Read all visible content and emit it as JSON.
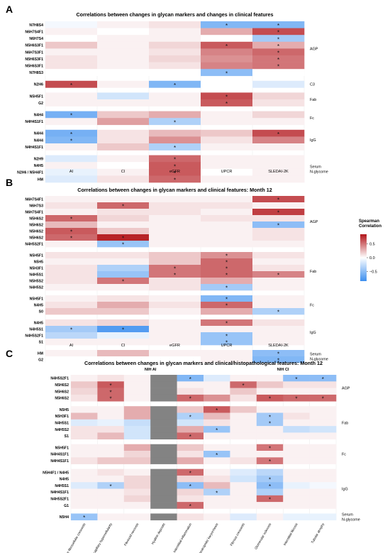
{
  "chart_data": [
    {
      "panel": "A",
      "type": "heatmap",
      "title": "Correlations between changes in glycan markers and changes in clinical features",
      "columns": [
        "AI",
        "CI",
        "eGFR",
        "UPCR",
        "SLEDAI-2K"
      ],
      "column_titles": [],
      "groups": [
        {
          "name": "AGP",
          "rows": [
            "N7H8S4",
            "N6H7S4F1",
            "N6H7S4",
            "N5H6S3F1",
            "N6H7S3F1",
            "N5H6S3F1",
            "N5H6S3F1",
            "N7H8S3"
          ]
        },
        {
          "name": "C3",
          "rows": [
            "N2H6"
          ]
        },
        {
          "name": "Fab",
          "rows": [
            "N5H5F1",
            "G2"
          ]
        },
        {
          "name": "Fc",
          "rows": [
            "N4H4",
            "N4H4S1F1"
          ]
        },
        {
          "name": "IgG",
          "rows": [
            "N4H4",
            "N4H4",
            "N4H4S1F1"
          ]
        },
        {
          "name": "Serum\nN-glycome",
          "rows": [
            "N2H9",
            "N4H5",
            "N2H6 / N5H4F1",
            "HM"
          ]
        }
      ],
      "values": [
        [
          -0.05,
          0.05,
          0.1,
          -0.55,
          -0.55
        ],
        [
          0.05,
          0.0,
          0.05,
          0.3,
          0.65
        ],
        [
          0.0,
          0.05,
          0.05,
          0.0,
          -0.4
        ],
        [
          0.2,
          0.05,
          0.15,
          0.6,
          0.3
        ],
        [
          0.05,
          0.05,
          0.1,
          0.45,
          0.55
        ],
        [
          0.1,
          0.05,
          0.15,
          0.4,
          0.5
        ],
        [
          0.1,
          0.05,
          0.1,
          0.45,
          0.5
        ],
        [
          0.0,
          0.0,
          0.0,
          -0.5,
          0.0
        ],
        [
          0.65,
          0.05,
          -0.55,
          0.0,
          -0.15
        ],
        [
          0.05,
          -0.2,
          0.05,
          0.65,
          0.15
        ],
        [
          0.05,
          0.05,
          0.05,
          0.6,
          0.1
        ],
        [
          -0.6,
          0.2,
          0.3,
          0.05,
          0.15
        ],
        [
          0.05,
          0.35,
          -0.35,
          0.05,
          0.05
        ],
        [
          -0.6,
          0.1,
          0.25,
          0.2,
          0.65
        ],
        [
          -0.55,
          0.1,
          0.4,
          0.1,
          0.45
        ],
        [
          0.05,
          0.2,
          -0.35,
          0.05,
          0.05
        ],
        [
          -0.15,
          0.05,
          0.55,
          0.05,
          0.05
        ],
        [
          0.05,
          0.0,
          0.6,
          0.05,
          0.05
        ],
        [
          -0.1,
          0.05,
          0.6,
          0.0,
          0.05
        ],
        [
          -0.15,
          0.1,
          0.55,
          0.05,
          0.05
        ]
      ],
      "significant": [
        [
          0,
          3
        ],
        [
          0,
          4
        ],
        [
          1,
          4
        ],
        [
          2,
          4
        ],
        [
          3,
          3
        ],
        [
          3,
          4
        ],
        [
          4,
          4
        ],
        [
          5,
          4
        ],
        [
          6,
          4
        ],
        [
          7,
          3
        ],
        [
          8,
          0
        ],
        [
          8,
          2
        ],
        [
          9,
          3
        ],
        [
          10,
          3
        ],
        [
          11,
          0
        ],
        [
          12,
          2
        ],
        [
          13,
          0
        ],
        [
          13,
          4
        ],
        [
          14,
          0
        ],
        [
          15,
          2
        ],
        [
          16,
          2
        ],
        [
          17,
          2
        ],
        [
          18,
          2
        ],
        [
          19,
          2
        ]
      ]
    },
    {
      "panel": "B",
      "type": "heatmap",
      "title": "Correlations between changes in glycan markers and clinical features: Month 12",
      "columns": [
        "AI",
        "CI",
        "eGFR",
        "UPCR",
        "SLEDAI-2K"
      ],
      "column_titles": [],
      "groups": [
        {
          "name": "AGP",
          "rows": [
            "N6H7S4F1",
            "N6H7S3",
            "N6H7S4F1",
            "N5H6S2",
            "N5H6S2",
            "N5H6S2",
            "N5H6S2",
            "N4H5S2F1"
          ]
        },
        {
          "name": "Fab",
          "rows": [
            "N5H5F1",
            "N5H5",
            "N5H3F1",
            "N4H5S1",
            "N5H5S2",
            "N4H5S2"
          ]
        },
        {
          "name": "Fc",
          "rows": [
            "N5H5F1",
            "N4H5",
            "S0"
          ]
        },
        {
          "name": "IgG",
          "rows": [
            "N4H5",
            "N4H5S1",
            "N4H5S2F1",
            "S1"
          ]
        },
        {
          "name": "Serum\nN-glycome",
          "rows": [
            "HM",
            "G2"
          ]
        }
      ],
      "values": [
        [
          0.05,
          0.05,
          0.05,
          0.05,
          0.65
        ],
        [
          0.1,
          0.55,
          0.1,
          0.1,
          0.05
        ],
        [
          0.05,
          0.1,
          0.1,
          0.05,
          0.7
        ],
        [
          0.55,
          0.15,
          0.05,
          0.1,
          0.1
        ],
        [
          0.25,
          0.05,
          0.05,
          0.05,
          -0.5
        ],
        [
          0.6,
          0.2,
          0.05,
          0.05,
          0.1
        ],
        [
          0.55,
          0.8,
          0.05,
          0.05,
          0.1
        ],
        [
          0.05,
          -0.45,
          0.05,
          0.05,
          0.05
        ],
        [
          0.1,
          0.1,
          0.2,
          0.4,
          0.1
        ],
        [
          0.05,
          0.05,
          0.2,
          0.55,
          0.05
        ],
        [
          0.1,
          -0.35,
          0.5,
          0.55,
          0.1
        ],
        [
          0.1,
          -0.45,
          0.5,
          0.55,
          0.45
        ],
        [
          0.1,
          0.5,
          0.1,
          0.3,
          0.05
        ],
        [
          0.05,
          0.05,
          0.1,
          -0.4,
          0.05
        ],
        [
          0.05,
          0.1,
          0.05,
          -0.55,
          0.05
        ],
        [
          0.1,
          0.3,
          0.1,
          0.55,
          0.05
        ],
        [
          0.2,
          0.2,
          0.05,
          0.3,
          -0.35
        ],
        [
          0.1,
          0.15,
          0.05,
          0.5,
          0.1
        ],
        [
          -0.4,
          -0.75,
          0.05,
          0.05,
          0.05
        ],
        [
          -0.3,
          -0.1,
          0.05,
          -0.45,
          0.05
        ],
        [
          0.05,
          0.05,
          0.05,
          -0.45,
          0.05
        ],
        [
          0.05,
          0.25,
          0.05,
          0.05,
          -0.5
        ],
        [
          0.0,
          0.0,
          0.0,
          0.05,
          -0.55
        ]
      ],
      "significant": [
        [
          0,
          4
        ],
        [
          1,
          1
        ],
        [
          2,
          4
        ],
        [
          3,
          0
        ],
        [
          4,
          4
        ],
        [
          5,
          0
        ],
        [
          6,
          0
        ],
        [
          6,
          1
        ],
        [
          7,
          1
        ],
        [
          8,
          3
        ],
        [
          9,
          3
        ],
        [
          10,
          2
        ],
        [
          10,
          3
        ],
        [
          11,
          2
        ],
        [
          11,
          3
        ],
        [
          11,
          4
        ],
        [
          12,
          1
        ],
        [
          13,
          3
        ],
        [
          14,
          3
        ],
        [
          15,
          3
        ],
        [
          16,
          4
        ],
        [
          17,
          3
        ],
        [
          18,
          0
        ],
        [
          18,
          1
        ],
        [
          19,
          3
        ],
        [
          20,
          3
        ],
        [
          21,
          4
        ],
        [
          22,
          4
        ]
      ]
    },
    {
      "panel": "C",
      "type": "heatmap",
      "title": "Correlations between changes in glycan markers and clinical/histopathological features: Month 12",
      "column_titles": [
        "NIH AI",
        "NIH CI"
      ],
      "columns": [
        "Cellular fibrocellular crescents",
        "Endocapillary hypercellularity",
        "Fibrinoid necrosis",
        "Hyaline deposits",
        "Interstitial inflammation",
        "Neutrophils/ karyorrhexis",
        "Fibrous crescents",
        "Glomerular sclerosis",
        "Interstitial fibrosis",
        "Tubular atrophy"
      ],
      "missing_column": 3,
      "groups": [
        {
          "name": "AGP",
          "rows": [
            "N4H5S2F1",
            "N5H6S2",
            "N5H6S2",
            "N5H6S2"
          ]
        },
        {
          "name": "Fab",
          "rows": [
            "N5H5",
            "N5H3F1",
            "N4H5S1",
            "N4H5S2",
            "S1"
          ]
        },
        {
          "name": "Fc",
          "rows": [
            "N5H5F1",
            "N4H4S1F1",
            "N4H4S1F1"
          ]
        },
        {
          "name": "IgG",
          "rows": [
            "N5H4F1 / N4H5",
            "N4H5",
            "N4H5S1",
            "N4H4S1F1",
            "N4H5S2F1",
            "G1"
          ]
        },
        {
          "name": "Serum\nN-glycome",
          "rows": [
            "N5H4"
          ]
        }
      ],
      "values": [
        [
          0.05,
          0.1,
          0.05,
          0,
          -0.55,
          -0.15,
          0.05,
          0.05,
          -0.5,
          -0.5
        ],
        [
          0.2,
          0.6,
          0.05,
          0,
          0.05,
          0.05,
          0.55,
          0.2,
          0.1,
          0.1
        ],
        [
          0.15,
          0.55,
          0.05,
          0,
          0.1,
          0.05,
          0.2,
          0.05,
          0.05,
          0.05
        ],
        [
          0.1,
          0.55,
          0.05,
          0,
          0.55,
          0.4,
          0.1,
          0.6,
          0.55,
          0.55
        ],
        [
          0.05,
          0.05,
          0.3,
          0,
          0.2,
          0.6,
          0.2,
          0.05,
          0.05,
          0.05
        ],
        [
          0.25,
          0.05,
          0.3,
          0,
          -0.35,
          0.25,
          0.05,
          -0.4,
          0.1,
          0.05
        ],
        [
          -0.15,
          -0.1,
          -0.25,
          0,
          -0.2,
          0.1,
          0.05,
          -0.4,
          0.05,
          0.05
        ],
        [
          0.1,
          0.1,
          -0.2,
          0,
          0.3,
          -0.45,
          0.05,
          0.05,
          -0.25,
          -0.2
        ],
        [
          0.1,
          0.25,
          -0.2,
          0,
          0.55,
          0.05,
          0.05,
          0.05,
          0.05,
          0.05
        ],
        [
          0.05,
          0.05,
          0.3,
          0,
          0.2,
          0.05,
          0.05,
          0.5,
          0.05,
          0.05
        ],
        [
          0.05,
          0.05,
          0.15,
          0,
          0.1,
          -0.45,
          0.05,
          0.05,
          0.05,
          0.05
        ],
        [
          0.1,
          0.2,
          0.2,
          0,
          0.3,
          0.05,
          0.1,
          0.5,
          0.05,
          0.05
        ],
        [
          0.05,
          0.1,
          0.05,
          0,
          0.55,
          0.05,
          -0.15,
          -0.3,
          0.05,
          0.05
        ],
        [
          0.05,
          0.05,
          0.15,
          0,
          0.15,
          0.1,
          -0.2,
          -0.4,
          0.05,
          0.05
        ],
        [
          -0.15,
          -0.35,
          0.15,
          0,
          -0.5,
          0.25,
          0.05,
          -0.5,
          -0.1,
          -0.05
        ],
        [
          0.05,
          0.05,
          0.1,
          0,
          0.15,
          -0.35,
          0.05,
          -0.35,
          0.05,
          0.05
        ],
        [
          0.05,
          0.05,
          0.15,
          0,
          0.1,
          0.05,
          0.05,
          0.55,
          0.05,
          0.05
        ],
        [
          0.05,
          0.05,
          0.05,
          0,
          0.55,
          0.05,
          0.05,
          0.05,
          0.05,
          0.05
        ],
        [
          -0.45,
          0.05,
          0.05,
          0,
          0.1,
          0.05,
          -0.15,
          0.05,
          -0.1,
          -0.1
        ]
      ],
      "significant": [
        [
          0,
          4
        ],
        [
          0,
          8
        ],
        [
          0,
          9
        ],
        [
          1,
          1
        ],
        [
          1,
          6
        ],
        [
          2,
          1
        ],
        [
          3,
          1
        ],
        [
          3,
          4
        ],
        [
          3,
          7
        ],
        [
          3,
          8
        ],
        [
          3,
          9
        ],
        [
          4,
          5
        ],
        [
          5,
          4
        ],
        [
          5,
          7
        ],
        [
          6,
          7
        ],
        [
          7,
          5
        ],
        [
          8,
          4
        ],
        [
          9,
          7
        ],
        [
          10,
          5
        ],
        [
          11,
          7
        ],
        [
          12,
          4
        ],
        [
          13,
          7
        ],
        [
          14,
          1
        ],
        [
          14,
          4
        ],
        [
          14,
          7
        ],
        [
          15,
          5
        ],
        [
          16,
          7
        ],
        [
          17,
          4
        ],
        [
          18,
          0
        ]
      ]
    }
  ],
  "legend": {
    "title": "Spearman\nCorrelation",
    "ticks": [
      "0.5",
      "0.0",
      "−0.5"
    ],
    "tick_values": [
      0.5,
      0.0,
      -0.5
    ],
    "range": [
      -0.85,
      0.85
    ],
    "colors": {
      "low": "#3d8fef",
      "mid": "#ffffff",
      "high": "#b2151a"
    }
  },
  "panel_letters": [
    "A",
    "B",
    "C"
  ],
  "significance_mark": "*",
  "missing_color": "#838383"
}
